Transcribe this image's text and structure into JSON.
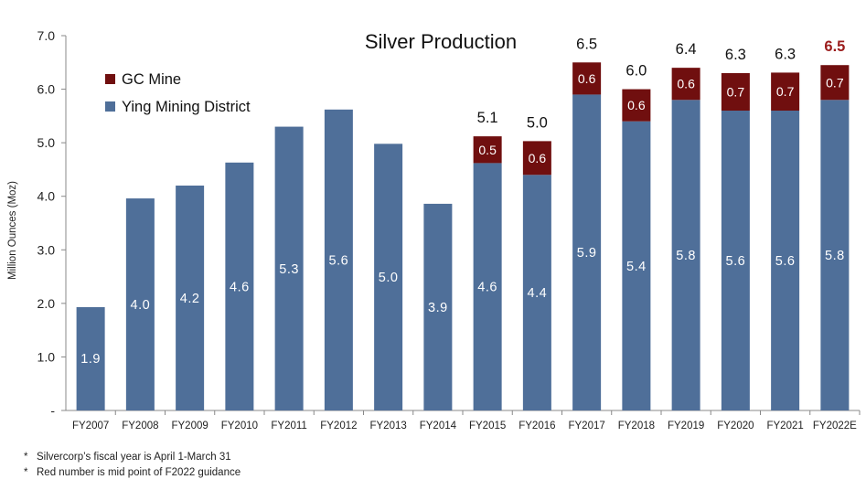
{
  "chart_data": {
    "type": "bar",
    "stacked": true,
    "title": "Silver Production",
    "ylabel": "Million Ounces (Moz)",
    "xlabel": "",
    "ylim": [
      0,
      7
    ],
    "yticks": [
      "-",
      "1.0",
      "2.0",
      "3.0",
      "4.0",
      "5.0",
      "6.0",
      "7.0"
    ],
    "categories": [
      "FY2007",
      "FY2008",
      "FY2009",
      "FY2010",
      "FY2011",
      "FY2012",
      "FY2013",
      "FY2014",
      "FY2015",
      "FY2016",
      "FY2017",
      "FY2018",
      "FY2019",
      "FY2020",
      "FY2021",
      "FY2022E"
    ],
    "series": [
      {
        "name": "Ying Mining District",
        "color": "#4f6f99",
        "values": [
          1.93,
          3.96,
          4.2,
          4.63,
          5.3,
          5.62,
          4.98,
          3.86,
          4.62,
          4.4,
          5.9,
          5.4,
          5.8,
          5.6,
          5.6,
          5.8
        ],
        "labels": [
          "1.9",
          "4.0",
          "4.2",
          "4.6",
          "5.3",
          "5.6",
          "5.0",
          "3.9",
          "4.6",
          "4.4",
          "5.9",
          "5.4",
          "5.8",
          "5.6",
          "5.6",
          "5.8"
        ]
      },
      {
        "name": "GC Mine",
        "color": "#700f0f",
        "values": [
          0,
          0,
          0,
          0,
          0,
          0,
          0,
          0,
          0.5,
          0.63,
          0.6,
          0.6,
          0.6,
          0.7,
          0.71,
          0.65
        ],
        "labels": [
          "",
          "",
          "",
          "",
          "",
          "",
          "",
          "",
          "0.5",
          "0.6",
          "0.6",
          "0.6",
          "0.6",
          "0.7",
          "0.7",
          "0.7"
        ]
      }
    ],
    "totals": [
      "",
      "",
      "",
      "",
      "",
      "",
      "",
      "",
      "5.1",
      "5.0",
      "6.5",
      "6.0",
      "6.4",
      "6.3",
      "6.3",
      "6.5"
    ],
    "highlight_total_index": 15,
    "highlight_color": "#9b1c1c",
    "legend": {
      "placement": "top-left",
      "entries": [
        "GC Mine",
        "Ying Mining District"
      ]
    },
    "grid": false
  },
  "footnotes": [
    "Silvercorp’s fiscal year is April 1-March 31",
    "Red number is mid point of F2022 guidance"
  ],
  "footnote_marker": "*"
}
